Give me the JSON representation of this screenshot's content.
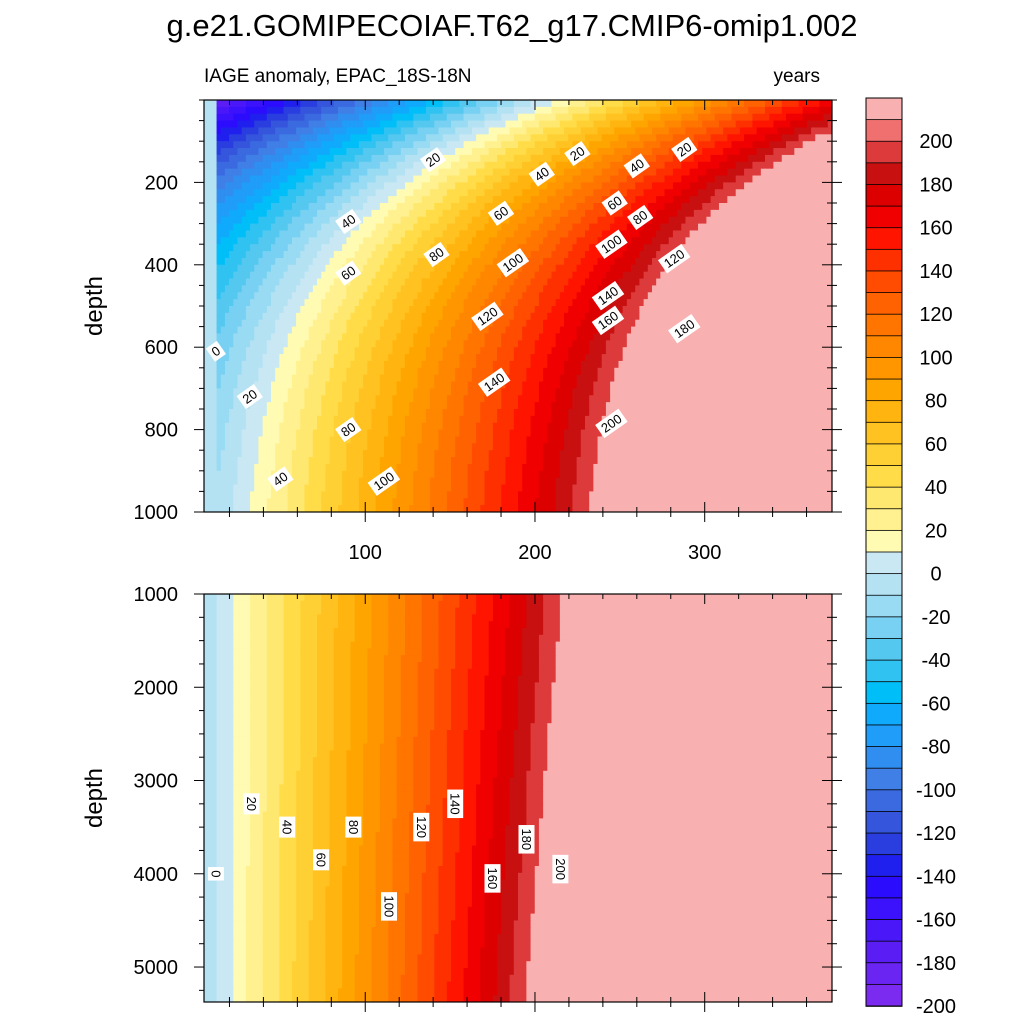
{
  "chart_data": {
    "type": "contour",
    "title": "g.e21.GOMIPECOIAF.T62_g17.CMIP6-omip1.002",
    "subtitle_left": "IAGE anomaly, EPAC_18S-18N",
    "subtitle_right": "years",
    "xlim": [
      5,
      375
    ],
    "x_ticks": [
      100,
      200,
      300
    ],
    "x_tick_labels": [
      "100",
      "200",
      "300"
    ],
    "panels": [
      {
        "name": "upper",
        "ylabel": "depth",
        "ylim": [
          0,
          1000
        ],
        "y_ticks": [
          200,
          400,
          600,
          800,
          1000
        ],
        "y_tick_labels": [
          "200",
          "400",
          "600",
          "800",
          "1000"
        ],
        "contour_labels": [
          {
            "text": "0",
            "x": 12,
            "y": 610
          },
          {
            "text": "20",
            "x": 32,
            "y": 720
          },
          {
            "text": "40",
            "x": 50,
            "y": 920
          },
          {
            "text": "80",
            "x": 90,
            "y": 800
          },
          {
            "text": "100",
            "x": 111,
            "y": 925
          },
          {
            "text": "40",
            "x": 90,
            "y": 295
          },
          {
            "text": "60",
            "x": 90,
            "y": 420
          },
          {
            "text": "20",
            "x": 140,
            "y": 145
          },
          {
            "text": "80",
            "x": 142,
            "y": 375
          },
          {
            "text": "60",
            "x": 180,
            "y": 275
          },
          {
            "text": "40",
            "x": 204,
            "y": 180
          },
          {
            "text": "100",
            "x": 187,
            "y": 395
          },
          {
            "text": "120",
            "x": 172,
            "y": 525
          },
          {
            "text": "140",
            "x": 176,
            "y": 685
          },
          {
            "text": "20",
            "x": 225,
            "y": 130
          },
          {
            "text": "60",
            "x": 247,
            "y": 250
          },
          {
            "text": "100",
            "x": 245,
            "y": 350
          },
          {
            "text": "40",
            "x": 260,
            "y": 160
          },
          {
            "text": "80",
            "x": 262,
            "y": 285
          },
          {
            "text": "140",
            "x": 243,
            "y": 475
          },
          {
            "text": "160",
            "x": 243,
            "y": 535
          },
          {
            "text": "120",
            "x": 282,
            "y": 385
          },
          {
            "text": "180",
            "x": 288,
            "y": 555
          },
          {
            "text": "20",
            "x": 288,
            "y": 120
          },
          {
            "text": "200",
            "x": 245,
            "y": 785
          }
        ]
      },
      {
        "name": "lower",
        "ylabel": "depth",
        "ylim": [
          1000,
          5375
        ],
        "y_ticks": [
          1000,
          2000,
          3000,
          4000,
          5000
        ],
        "y_tick_labels": [
          "1000",
          "2000",
          "3000",
          "4000",
          "5000"
        ],
        "contour_labels": [
          {
            "text": "0",
            "x": 12,
            "y": 4000
          },
          {
            "text": "20",
            "x": 33,
            "y": 3250
          },
          {
            "text": "40",
            "x": 54,
            "y": 3500
          },
          {
            "text": "60",
            "x": 74,
            "y": 3850
          },
          {
            "text": "80",
            "x": 93,
            "y": 3500
          },
          {
            "text": "100",
            "x": 114,
            "y": 4350
          },
          {
            "text": "120",
            "x": 133,
            "y": 3500
          },
          {
            "text": "140",
            "x": 153,
            "y": 3250
          },
          {
            "text": "160",
            "x": 175,
            "y": 4050
          },
          {
            "text": "180",
            "x": 195,
            "y": 3630
          },
          {
            "text": "200",
            "x": 215,
            "y": 3950
          }
        ]
      }
    ],
    "contour_interval": 10,
    "colorbar": {
      "levels": [
        -200,
        -190,
        -180,
        -170,
        -160,
        -150,
        -140,
        -130,
        -120,
        -110,
        -100,
        -90,
        -80,
        -70,
        -60,
        -50,
        -40,
        -30,
        -20,
        -10,
        0,
        10,
        20,
        30,
        40,
        50,
        60,
        70,
        80,
        90,
        100,
        110,
        120,
        130,
        140,
        150,
        160,
        170,
        180,
        190,
        200
      ],
      "colors": [
        "#7b2bef",
        "#6a25f2",
        "#5a1ef5",
        "#4a18f8",
        "#3b12fb",
        "#2c0cfd",
        "#2020ee",
        "#2a3ee0",
        "#3555dc",
        "#3b6ae0",
        "#3f7fe6",
        "#2f8ef0",
        "#1f9df8",
        "#10aafc",
        "#00bff8",
        "#30c3f2",
        "#55c8f0",
        "#78d0f2",
        "#98dbf3",
        "#b4e2f3",
        "#c9e8f4",
        "#fffbb2",
        "#fff190",
        "#ffe870",
        "#ffdc48",
        "#ffd034",
        "#ffc220",
        "#ffb410",
        "#ffa500",
        "#ff9600",
        "#ff8700",
        "#ff7500",
        "#ff6200",
        "#ff4c00",
        "#ff3000",
        "#ff1400",
        "#f00000",
        "#dc0000",
        "#c81010",
        "#dd3a3c",
        "#f07070",
        "#f9b0b0"
      ],
      "tick_values": [
        200,
        180,
        160,
        140,
        120,
        100,
        80,
        60,
        40,
        20,
        0,
        -20,
        -40,
        -60,
        -80,
        -100,
        -120,
        -140,
        -160,
        -180,
        -200
      ],
      "tick_labels": [
        "200",
        "180",
        "160",
        "140",
        "120",
        "100",
        "80",
        "60",
        "40",
        "20",
        "0",
        "-20",
        "-40",
        "-60",
        "-80",
        "-100",
        "-120",
        "-140",
        "-160",
        "-180",
        "-200"
      ]
    }
  }
}
